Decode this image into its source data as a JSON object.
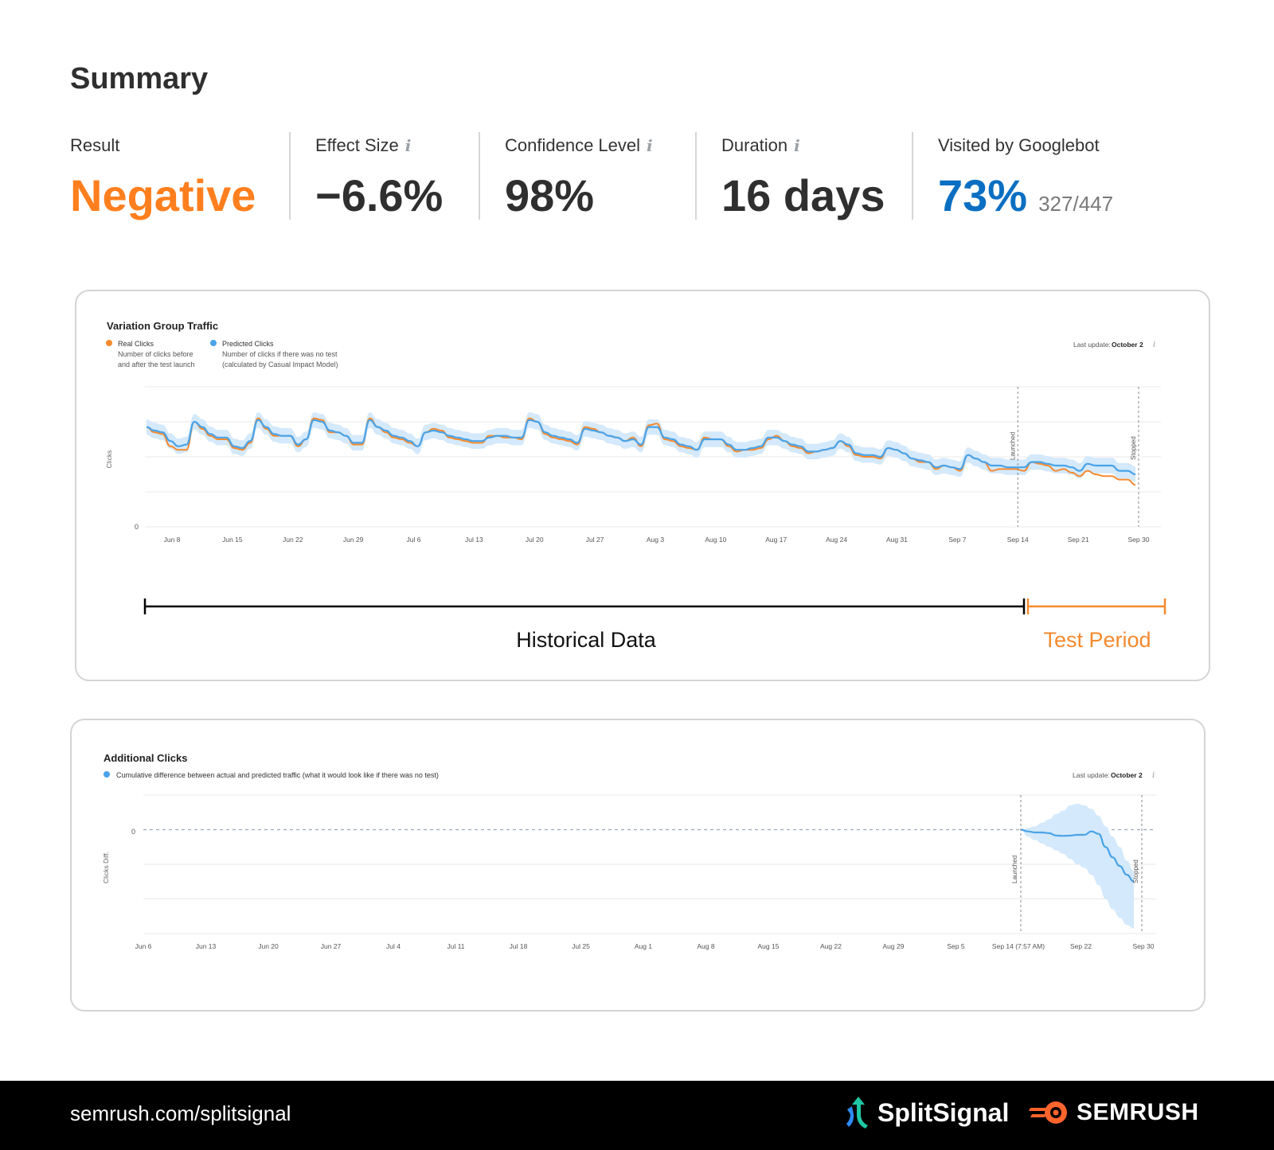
{
  "summary": {
    "title": "Summary",
    "metrics": [
      {
        "label": "Result",
        "value": "Negative",
        "info": false
      },
      {
        "label": "Effect Size",
        "value": "−6.6%",
        "info": true
      },
      {
        "label": "Confidence Level",
        "value": "98%",
        "info": true
      },
      {
        "label": "Duration",
        "value": "16 days",
        "info": true
      },
      {
        "label": "Visited by Googlebot",
        "value": "73%",
        "sub": "327/447",
        "info": false
      }
    ]
  },
  "colors": {
    "real": "#f58a2f",
    "predicted": "#4aa3e8",
    "band": "#d4e9fb",
    "result": "#ff7f1e",
    "googlebot": "#0a6fc2"
  },
  "footer": {
    "url": "semrush.com/splitsignal",
    "brand_split": "SplitSignal",
    "brand_semrush": "SEMRUSH"
  },
  "chart_data": [
    {
      "type": "line",
      "title": "Variation Group Traffic",
      "legend": [
        {
          "name": "Real Clicks",
          "desc1": "Number of clicks before",
          "desc2": "and after the test launch"
        },
        {
          "name": "Predicted Clicks",
          "desc1": "Number of clicks if there was no test",
          "desc2": "(calculated by Casual Impact Model)"
        }
      ],
      "last_update_label": "Last update:",
      "last_update_value": "October 2",
      "ylabel": "Clicks",
      "ytick_labels": [
        "0"
      ],
      "xtick_labels": [
        "Jun 8",
        "Jun 15",
        "Jun 22",
        "Jun 29",
        "Jul 6",
        "Jul 13",
        "Jul 20",
        "Jul 27",
        "Aug 3",
        "Aug 10",
        "Aug 17",
        "Aug 24",
        "Aug 31",
        "Sep 7",
        "Sep 14",
        "Sep 21",
        "Sep 30"
      ],
      "markers": [
        {
          "label": "Launched",
          "x": "Sep 14"
        },
        {
          "label": "Stopped",
          "x": "Sep 30"
        }
      ],
      "ylim": [
        0,
        4
      ],
      "grid": true,
      "series": [
        {
          "name": "Real Clicks",
          "values": [
            2.85,
            2.7,
            2.65,
            2.3,
            2.2,
            2.2,
            3.0,
            2.8,
            2.6,
            2.5,
            2.5,
            2.25,
            2.2,
            2.4,
            3.1,
            2.8,
            2.6,
            2.6,
            2.6,
            2.3,
            2.5,
            3.1,
            3.05,
            2.7,
            2.7,
            2.6,
            2.35,
            2.35,
            3.1,
            2.85,
            2.7,
            2.55,
            2.5,
            2.4,
            2.3,
            2.7,
            2.8,
            2.75,
            2.55,
            2.5,
            2.45,
            2.4,
            2.4,
            2.6,
            2.6,
            2.55,
            2.55,
            2.5,
            3.1,
            3.0,
            2.65,
            2.55,
            2.5,
            2.45,
            2.35,
            2.85,
            2.8,
            2.7,
            2.6,
            2.55,
            2.45,
            2.55,
            2.3,
            2.9,
            2.95,
            2.5,
            2.45,
            2.3,
            2.25,
            2.2,
            2.55,
            2.5,
            2.5,
            2.3,
            2.15,
            2.2,
            2.2,
            2.25,
            2.5,
            2.6,
            2.45,
            2.3,
            2.25,
            2.1,
            2.15,
            2.2,
            2.25,
            2.45,
            2.3,
            2.05,
            2.0,
            2.0,
            1.95,
            2.25,
            2.2,
            2.1,
            1.95,
            1.85,
            1.85,
            1.65,
            1.75,
            1.7,
            1.6,
            2.05,
            1.95,
            1.85,
            1.6,
            1.65,
            1.65,
            1.65,
            1.6,
            1.85,
            1.8,
            1.75,
            1.6,
            1.65,
            1.55,
            1.45,
            1.6,
            1.5,
            1.45,
            1.45,
            1.35,
            1.35,
            1.2
          ]
        },
        {
          "name": "Predicted Clicks",
          "values": [
            2.85,
            2.75,
            2.7,
            2.45,
            2.3,
            2.35,
            3.0,
            2.85,
            2.65,
            2.55,
            2.55,
            2.3,
            2.25,
            2.45,
            3.05,
            2.85,
            2.65,
            2.6,
            2.6,
            2.35,
            2.5,
            3.05,
            3.0,
            2.75,
            2.7,
            2.6,
            2.4,
            2.4,
            3.05,
            2.85,
            2.75,
            2.6,
            2.55,
            2.45,
            2.3,
            2.7,
            2.75,
            2.7,
            2.6,
            2.55,
            2.5,
            2.45,
            2.45,
            2.55,
            2.6,
            2.6,
            2.55,
            2.55,
            3.05,
            3.0,
            2.7,
            2.6,
            2.55,
            2.5,
            2.4,
            2.8,
            2.75,
            2.7,
            2.6,
            2.55,
            2.45,
            2.5,
            2.35,
            2.85,
            2.85,
            2.55,
            2.5,
            2.35,
            2.3,
            2.2,
            2.5,
            2.5,
            2.5,
            2.35,
            2.2,
            2.2,
            2.25,
            2.3,
            2.55,
            2.55,
            2.45,
            2.35,
            2.3,
            2.15,
            2.15,
            2.2,
            2.25,
            2.45,
            2.35,
            2.1,
            2.05,
            2.05,
            2.0,
            2.25,
            2.2,
            2.1,
            1.95,
            1.9,
            1.85,
            1.7,
            1.75,
            1.7,
            1.65,
            2.05,
            1.95,
            1.85,
            1.75,
            1.75,
            1.7,
            1.7,
            1.7,
            1.85,
            1.85,
            1.8,
            1.75,
            1.75,
            1.7,
            1.6,
            1.8,
            1.75,
            1.75,
            1.75,
            1.6,
            1.6,
            1.5
          ]
        }
      ],
      "periods": {
        "historical": "Historical Data",
        "test": "Test Period"
      }
    },
    {
      "type": "area",
      "title": "Additional Clicks",
      "legend": [
        {
          "name": "Cumulative difference between actual and predicted traffic (what it would look like if there was no test)"
        }
      ],
      "last_update_label": "Last update:",
      "last_update_value": "October 2",
      "ylabel": "Clicks Diff.",
      "ytick_labels": [
        "0"
      ],
      "xtick_labels": [
        "Jun 6",
        "Jun 13",
        "Jun 20",
        "Jun 27",
        "Jul 4",
        "Jul 11",
        "Jul 18",
        "Jul 25",
        "Aug 1",
        "Aug 8",
        "Aug 15",
        "Aug 22",
        "Aug 29",
        "Sep 5",
        "Sep 14 (7:57 AM)",
        "Sep 22",
        "Sep 30"
      ],
      "markers": [
        {
          "label": "Launched",
          "x": "Sep 14 (7:57 AM)"
        },
        {
          "label": "Stopped",
          "x": "Sep 30"
        }
      ],
      "ylim": [
        -3,
        1
      ],
      "grid": true,
      "series": [
        {
          "name": "",
          "values": [
            0,
            -0.05,
            -0.08,
            -0.08,
            -0.1,
            -0.17,
            -0.18,
            -0.17,
            -0.15,
            -0.15,
            -0.05,
            -0.12,
            -0.5,
            -0.8,
            -1.05,
            -1.3,
            -1.5
          ],
          "upper": [
            0,
            0.05,
            0.1,
            0.2,
            0.3,
            0.45,
            0.55,
            0.7,
            0.75,
            0.7,
            0.6,
            0.4,
            0.1,
            -0.2,
            -0.5,
            -0.9,
            -1.2
          ],
          "lower": [
            0,
            -0.2,
            -0.3,
            -0.4,
            -0.5,
            -0.6,
            -0.7,
            -0.85,
            -1.0,
            -1.1,
            -1.3,
            -1.6,
            -2.0,
            -2.3,
            -2.55,
            -2.75,
            -2.85
          ]
        }
      ]
    }
  ]
}
